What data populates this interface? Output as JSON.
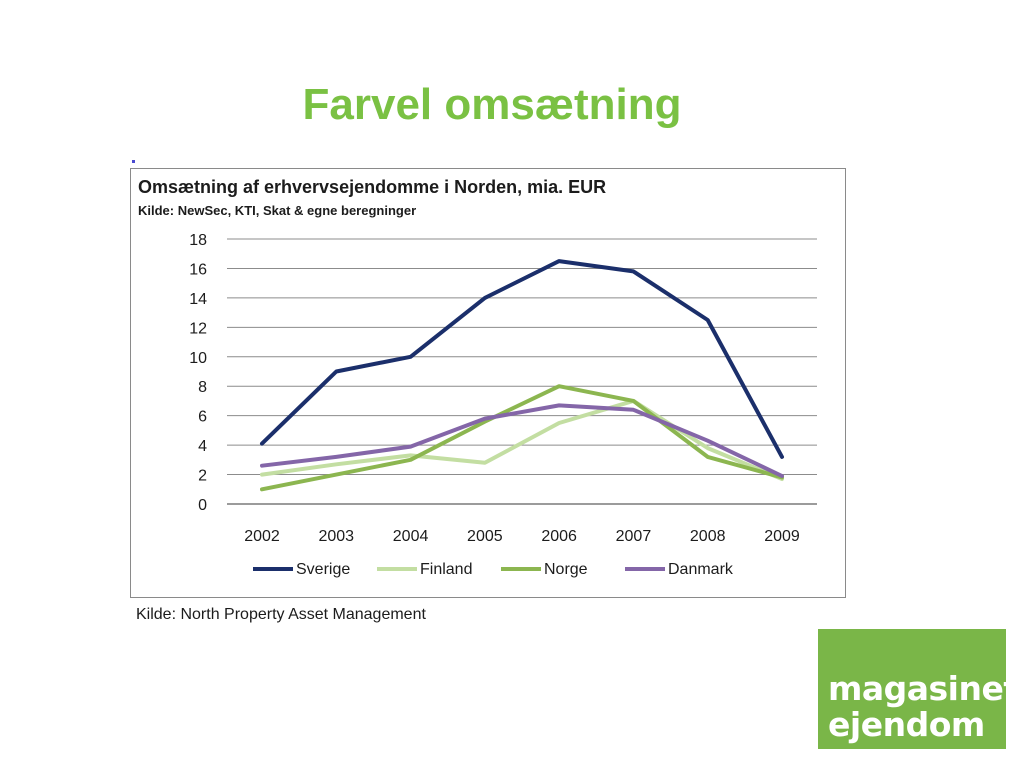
{
  "slide": {
    "title": "Farvel omsætning",
    "source": "Kilde: North Property Asset Management"
  },
  "logo": {
    "line1": "magasinet",
    "line2": "ejendom",
    "color": "#7ab648"
  },
  "chart_data": {
    "type": "line",
    "title": "Omsætning af erhvervsejendomme i Norden, mia. EUR",
    "subtitle": "Kilde: NewSec, KTI, Skat & egne beregninger",
    "x": [
      "2002",
      "2003",
      "2004",
      "2005",
      "2006",
      "2007",
      "2008",
      "2009"
    ],
    "ylim": [
      0,
      18
    ],
    "yticks": [
      0,
      2,
      4,
      6,
      8,
      10,
      12,
      14,
      16,
      18
    ],
    "grid": true,
    "legend_position": "bottom",
    "series": [
      {
        "name": "Sverige",
        "color": "#1b2f6b",
        "values": [
          4.1,
          9.0,
          10.0,
          14.0,
          16.5,
          15.8,
          12.5,
          3.2
        ]
      },
      {
        "name": "Finland",
        "color": "#c3dea2",
        "values": [
          2.0,
          2.7,
          3.3,
          2.8,
          5.5,
          7.0,
          3.8,
          1.7
        ]
      },
      {
        "name": "Norge",
        "color": "#8cb650",
        "values": [
          1.0,
          2.0,
          3.0,
          5.6,
          8.0,
          7.0,
          3.2,
          1.8
        ]
      },
      {
        "name": "Danmark",
        "color": "#8466a8",
        "values": [
          2.6,
          3.2,
          3.9,
          5.8,
          6.7,
          6.4,
          4.3,
          1.9
        ]
      }
    ]
  }
}
